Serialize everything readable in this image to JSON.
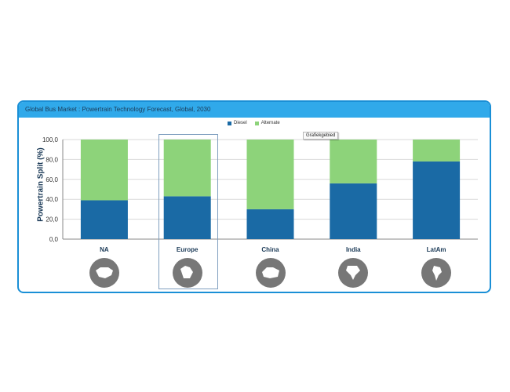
{
  "colors": {
    "diesel": "#1a6aa5",
    "alternate": "#8dd37a",
    "frame": "#1a8fd6",
    "title_bar": "#30a9ea",
    "icon_circle": "#777777"
  },
  "tooltip": "Grafiekgebied",
  "chart_data": {
    "type": "bar",
    "stacked": true,
    "title": "Global Bus  Market : Powertrain Technology Forecast, Global, 2030",
    "ylabel": "Powertrain Split (%)",
    "xlabel": "",
    "categories": [
      "NA",
      "Europe",
      "China",
      "India",
      "LatAm"
    ],
    "series": [
      {
        "name": "Diesel",
        "values": [
          39,
          43,
          30,
          56,
          78
        ]
      },
      {
        "name": "Alternate",
        "values": [
          61,
          57,
          70,
          44,
          22
        ]
      }
    ],
    "ylim": [
      0,
      100
    ],
    "yticks": [
      "0,0",
      "20,0",
      "40,0",
      "60,0",
      "80,0",
      "100,0"
    ],
    "grid": true,
    "legend_position": "top-center",
    "region_icons": [
      "north-america-map-icon",
      "europe-map-icon",
      "china-map-icon",
      "india-map-icon",
      "latin-america-map-icon"
    ]
  }
}
